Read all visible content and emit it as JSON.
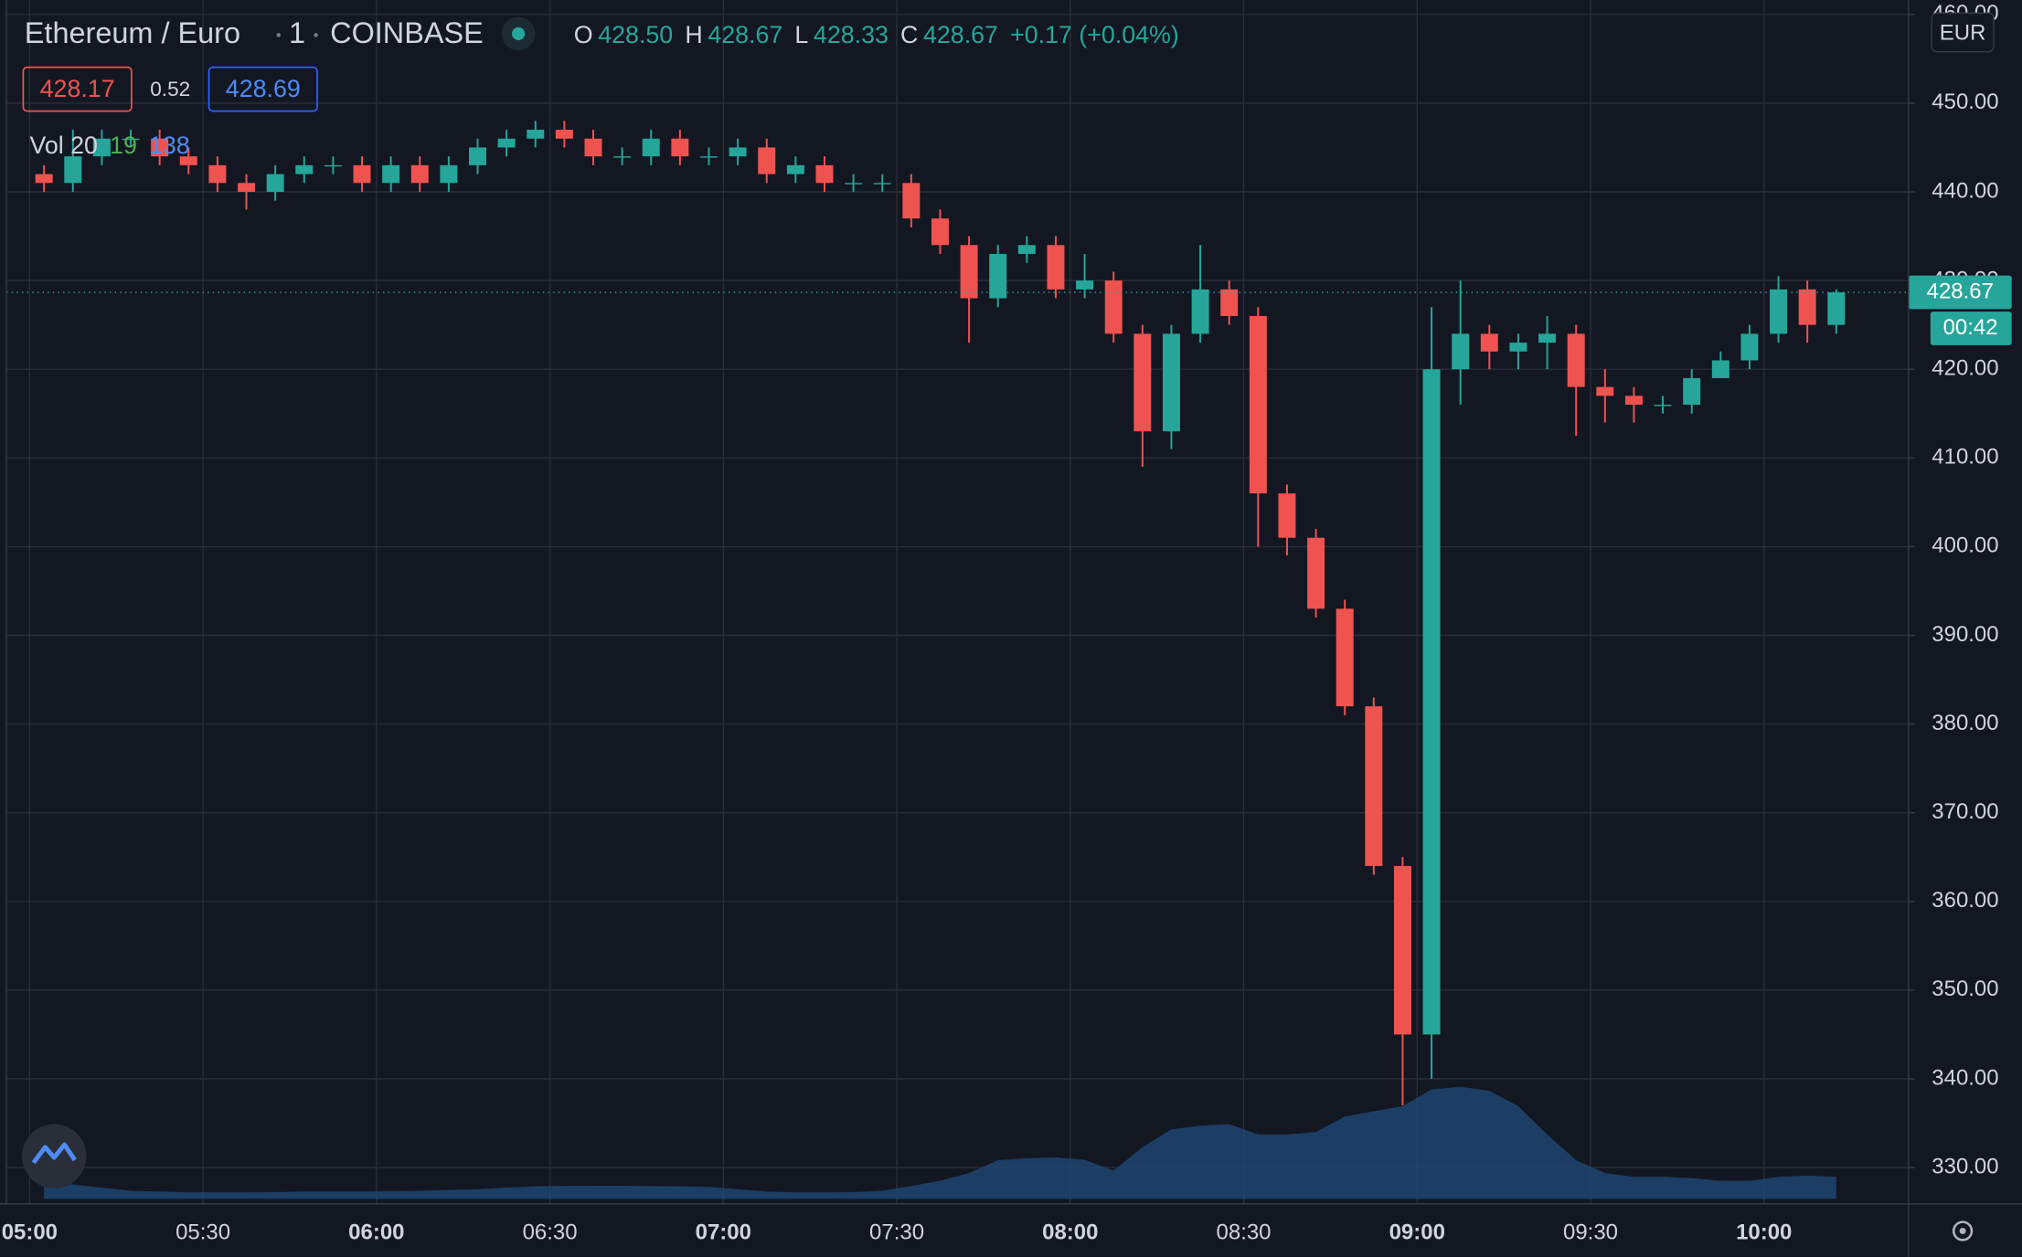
{
  "chart_data": {
    "type": "candlestick",
    "symbol": "Ethereum / Euro",
    "interval": "1",
    "exchange": "COINBASE",
    "ohlc_legend": [
      {
        "key": "O",
        "value": "428.50"
      },
      {
        "key": "H",
        "value": "428.67"
      },
      {
        "key": "L",
        "value": "428.33"
      },
      {
        "key": "C",
        "value": "428.67"
      }
    ],
    "change": "+0.17 (+0.04%)",
    "quote": {
      "bid": "428.17",
      "spread": "0.52",
      "ask": "428.69"
    },
    "currency": "EUR",
    "last_price": {
      "value": 428.67,
      "label": "428.67"
    },
    "countdown": "00:42",
    "up_color": "#26a69a",
    "down_color": "#ef5350",
    "grid": true,
    "xlim": [
      "04:56",
      "10:25"
    ],
    "xticks": [
      "05:00",
      "05:30",
      "06:00",
      "06:30",
      "07:00",
      "07:30",
      "08:00",
      "08:30",
      "09:00",
      "09:30",
      "10:00"
    ],
    "ylim": [
      325.9,
      461.6
    ],
    "yticks": [
      {
        "value": 330,
        "label": "330.00"
      },
      {
        "value": 340,
        "label": "340.00"
      },
      {
        "value": 350,
        "label": "350.00"
      },
      {
        "value": 360,
        "label": "360.00"
      },
      {
        "value": 370,
        "label": "370.00"
      },
      {
        "value": 380,
        "label": "380.00"
      },
      {
        "value": 390,
        "label": "390.00"
      },
      {
        "value": 400,
        "label": "400.00"
      },
      {
        "value": 410,
        "label": "410.00"
      },
      {
        "value": 420,
        "label": "420.00"
      },
      {
        "value": 430,
        "label": "430.00"
      },
      {
        "value": 440,
        "label": "440.00"
      },
      {
        "value": 450,
        "label": "450.00"
      },
      {
        "value": 460,
        "label": "460.00"
      }
    ],
    "x": [
      "05:00",
      "05:05",
      "05:10",
      "05:15",
      "05:20",
      "05:25",
      "05:30",
      "05:35",
      "05:40",
      "05:45",
      "05:50",
      "05:55",
      "06:00",
      "06:05",
      "06:10",
      "06:15",
      "06:20",
      "06:25",
      "06:30",
      "06:35",
      "06:40",
      "06:45",
      "06:50",
      "06:55",
      "07:00",
      "07:05",
      "07:10",
      "07:15",
      "07:20",
      "07:25",
      "07:30",
      "07:35",
      "07:40",
      "07:45",
      "07:50",
      "07:55",
      "08:00",
      "08:05",
      "08:10",
      "08:15",
      "08:20",
      "08:25",
      "08:30",
      "08:35",
      "08:40",
      "08:45",
      "08:50",
      "08:55",
      "09:00",
      "09:05",
      "09:10",
      "09:15",
      "09:20",
      "09:25",
      "09:30",
      "09:35",
      "09:40",
      "09:45",
      "09:50",
      "09:55",
      "10:00",
      "10:05",
      "10:10"
    ],
    "open": [
      442,
      441,
      444,
      446,
      446,
      444,
      443,
      441,
      440,
      442,
      443,
      443,
      441,
      443,
      441,
      443,
      445,
      446,
      447,
      446,
      444,
      444,
      446,
      444,
      444,
      445,
      442,
      443,
      441,
      441,
      441,
      437,
      434,
      428,
      433,
      434,
      429,
      430,
      424,
      413,
      424,
      429,
      426,
      406,
      401,
      393,
      382,
      364,
      345,
      420,
      424,
      422,
      423,
      424,
      418,
      417,
      416,
      416,
      419,
      421,
      424,
      429,
      425
    ],
    "high": [
      443,
      447,
      447,
      447,
      447,
      445,
      444,
      442,
      443,
      444,
      444,
      444,
      444,
      444,
      444,
      446,
      447,
      448,
      448,
      447,
      445,
      447,
      447,
      445,
      446,
      446,
      444,
      444,
      442,
      442,
      442,
      438,
      435,
      434,
      435,
      435,
      433,
      431,
      425,
      425,
      434,
      430,
      427,
      407,
      402,
      394,
      383,
      365,
      427,
      430,
      425,
      424,
      426,
      425,
      420,
      418,
      417,
      420,
      422,
      425,
      430.5,
      430,
      429
    ],
    "low": [
      440,
      440,
      443,
      445,
      443,
      442,
      440,
      438,
      439,
      441,
      442,
      440,
      440,
      440,
      440,
      442,
      444,
      445,
      445,
      443,
      443,
      443,
      443,
      443,
      443,
      441,
      441,
      440,
      440,
      440,
      436,
      433,
      423,
      427,
      432,
      428,
      428,
      423,
      409,
      411,
      423,
      425,
      400,
      399,
      392,
      381,
      363,
      337,
      340,
      416,
      420,
      420,
      420,
      412.5,
      414,
      414,
      415,
      415,
      419,
      420,
      423,
      423,
      424
    ],
    "close": [
      441,
      444,
      446,
      446,
      444,
      443,
      441,
      440,
      442,
      443,
      443,
      441,
      443,
      441,
      443,
      445,
      446,
      447,
      446,
      444,
      444,
      446,
      444,
      444,
      445,
      442,
      443,
      441,
      441,
      441,
      437,
      434,
      428,
      433,
      434,
      429,
      430,
      424,
      413,
      424,
      429,
      426,
      406,
      401,
      393,
      382,
      364,
      345,
      420,
      424,
      422,
      423,
      424,
      418,
      417,
      416,
      416,
      419,
      421,
      424,
      429,
      425,
      428.67
    ],
    "volume": {
      "title": "Vol 20",
      "last_volume": 19,
      "last_ma": 138,
      "color": "#1f4570",
      "ma_values": [
        97,
        90,
        70,
        50,
        45,
        40,
        40,
        40,
        42,
        45,
        45,
        45,
        48,
        50,
        55,
        60,
        70,
        78,
        81,
        82,
        82,
        80,
        78,
        75,
        60,
        45,
        40,
        40,
        42,
        50,
        80,
        113,
        162,
        243,
        255,
        260,
        245,
        178,
        324,
        437,
        460,
        470,
        405,
        405,
        420,
        518,
        551,
        583,
        689,
        705,
        680,
        583,
        405,
        243,
        162,
        138,
        138,
        130,
        113,
        113,
        138,
        146,
        138
      ]
    }
  }
}
